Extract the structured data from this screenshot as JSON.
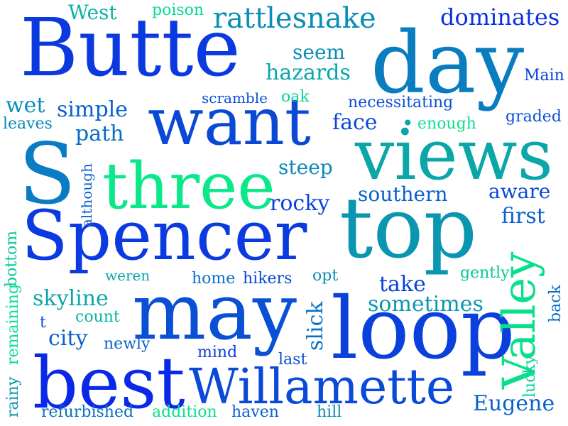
{
  "words": [
    {
      "id": "butte",
      "text": "Butte",
      "color": "#0a3adf"
    },
    {
      "id": "day",
      "text": "day",
      "color": "#0a7dc0"
    },
    {
      "id": "want",
      "text": "want",
      "color": "#0a48d6"
    },
    {
      "id": "views",
      "text": "views",
      "color": "#0aa6a8"
    },
    {
      "id": "s",
      "text": "S",
      "color": "#0a7cc3"
    },
    {
      "id": "three",
      "text": "three",
      "color": "#0ae88a"
    },
    {
      "id": "spencer",
      "text": "Spencer",
      "color": "#0a3ae0"
    },
    {
      "id": "top",
      "text": "top",
      "color": "#0a96b0"
    },
    {
      "id": "may",
      "text": "may",
      "color": "#0a50d4"
    },
    {
      "id": "loop",
      "text": "loop",
      "color": "#0a40dc"
    },
    {
      "id": "best",
      "text": "best",
      "color": "#0a28e8"
    },
    {
      "id": "willamette",
      "text": "Willamette",
      "color": "#0a4ad8"
    },
    {
      "id": "valley",
      "text": "Valley",
      "color": "#0ae08c"
    },
    {
      "id": "rattlesnake",
      "text": "rattlesnake",
      "color": "#0a8eb6"
    },
    {
      "id": "dominates",
      "text": "dominates",
      "color": "#0a30e2"
    },
    {
      "id": "west",
      "text": "West",
      "color": "#0ab4a2"
    },
    {
      "id": "poison",
      "text": "poison",
      "color": "#0ad89a"
    },
    {
      "id": "seem",
      "text": "seem",
      "color": "#0a8eb6"
    },
    {
      "id": "hazards",
      "text": "hazards",
      "color": "#0aa6a8"
    },
    {
      "id": "main",
      "text": "Main",
      "color": "#0a40dc"
    },
    {
      "id": "scramble",
      "text": "scramble",
      "color": "#0a50d4"
    },
    {
      "id": "oak",
      "text": "oak",
      "color": "#0ad09c"
    },
    {
      "id": "necessitating",
      "text": "necessitating",
      "color": "#0a50d4"
    },
    {
      "id": "wet",
      "text": "wet",
      "color": "#0a8cb8"
    },
    {
      "id": "simple",
      "text": "simple",
      "color": "#0a60cc"
    },
    {
      "id": "leaves",
      "text": "leaves",
      "color": "#0a88b8"
    },
    {
      "id": "path",
      "text": "path",
      "color": "#0a6cc6"
    },
    {
      "id": "face",
      "text": "face",
      "color": "#0a48d6"
    },
    {
      "id": "dot",
      "text": "•",
      "color": "#0aa6a8"
    },
    {
      "id": "enough",
      "text": "enough",
      "color": "#0ae08c"
    },
    {
      "id": "graded",
      "text": "graded",
      "color": "#0a50d4"
    },
    {
      "id": "although",
      "text": "although",
      "color": "#0a60cc"
    },
    {
      "id": "steep",
      "text": "steep",
      "color": "#0a88b8"
    },
    {
      "id": "southern",
      "text": "southern",
      "color": "#0a60cc"
    },
    {
      "id": "aware",
      "text": "aware",
      "color": "#0a48d6"
    },
    {
      "id": "rocky",
      "text": "rocky",
      "color": "#0a40dc"
    },
    {
      "id": "first",
      "text": "first",
      "color": "#0a60cc"
    },
    {
      "id": "remaining",
      "text": "remaining",
      "color": "#0ae08c"
    },
    {
      "id": "bottom",
      "text": "bottom",
      "color": "#0ac896"
    },
    {
      "id": "weren",
      "text": "weren",
      "color": "#0aa6a8"
    },
    {
      "id": "home",
      "text": "home",
      "color": "#0a70c4"
    },
    {
      "id": "hikers",
      "text": "hikers",
      "color": "#0a48d6"
    },
    {
      "id": "opt",
      "text": "opt",
      "color": "#0a8cb8"
    },
    {
      "id": "gently",
      "text": "gently",
      "color": "#0ac896"
    },
    {
      "id": "take",
      "text": "take",
      "color": "#0a40dc"
    },
    {
      "id": "skyline",
      "text": "skyline",
      "color": "#0aa6a8"
    },
    {
      "id": "count",
      "text": "count",
      "color": "#0ab4a2"
    },
    {
      "id": "slick",
      "text": "slick",
      "color": "#0a70c4"
    },
    {
      "id": "sometimes",
      "text": "sometimes",
      "color": "#0a96b0"
    },
    {
      "id": "back",
      "text": "back",
      "color": "#0a70c4"
    },
    {
      "id": "t",
      "text": "t",
      "color": "#0a50d4"
    },
    {
      "id": "city",
      "text": "city",
      "color": "#0a60cc"
    },
    {
      "id": "newly",
      "text": "newly",
      "color": "#0a60cc"
    },
    {
      "id": "mind",
      "text": "mind",
      "color": "#0a40dc"
    },
    {
      "id": "last",
      "text": "last",
      "color": "#0a50d4"
    },
    {
      "id": "rainy",
      "text": "rainy",
      "color": "#0a96b0"
    },
    {
      "id": "lucky",
      "text": "lucky",
      "color": "#0ad09c"
    },
    {
      "id": "eugene",
      "text": "Eugene",
      "color": "#0a60cc"
    },
    {
      "id": "refurbished",
      "text": "refurbished",
      "color": "#0a70c4"
    },
    {
      "id": "addition",
      "text": "addition",
      "color": "#0ae08c"
    },
    {
      "id": "haven",
      "text": "haven",
      "color": "#0a60cc"
    },
    {
      "id": "hill",
      "text": "hill",
      "color": "#0a8cb8"
    }
  ]
}
